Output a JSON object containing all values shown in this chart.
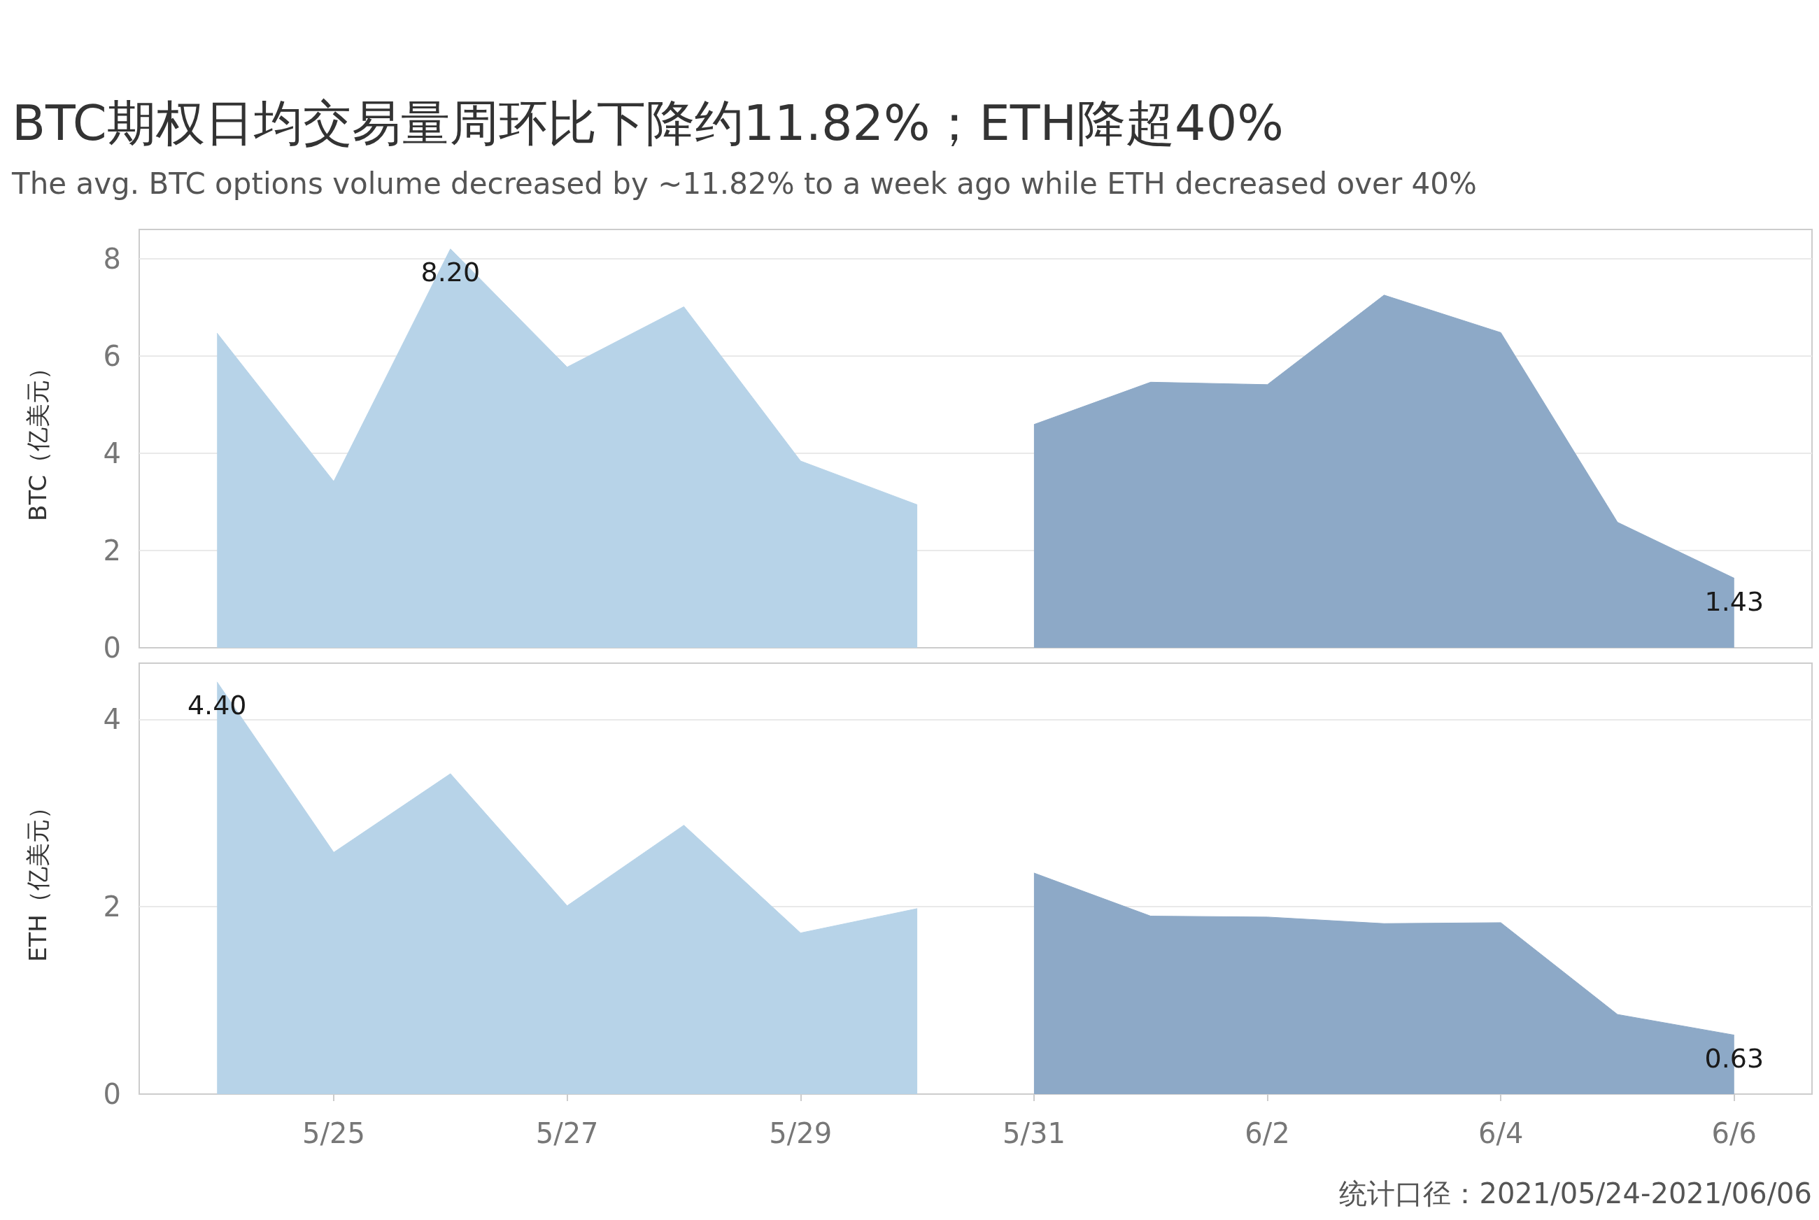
{
  "chart_data": [
    {
      "type": "area",
      "title": "BTC期权日均交易量周环比下降约11.82%；ETH降超40%",
      "subtitle": "The avg. BTC options volume decreased by ~11.82% to a week ago while ETH decreased over 40%",
      "ylabel": "BTC（亿美元）",
      "xlim": [
        "2021-05-23T08:00",
        "2021-06-06T16:00"
      ],
      "ylim": [
        0,
        8.6
      ],
      "yticks": [
        0,
        2,
        4,
        6,
        8
      ],
      "grid": "y",
      "tick_labels": "y",
      "series": [
        {
          "color": "#b7d3e8",
          "x": [
            "2021-05-24",
            "2021-05-25",
            "2021-05-26",
            "2021-05-27",
            "2021-05-28",
            "2021-05-29",
            "2021-05-30"
          ],
          "values": [
            6.47,
            3.42,
            8.2,
            5.77,
            7.01,
            3.84,
            2.94
          ],
          "value_labels": [
            null,
            null,
            "8.20",
            null,
            null,
            null,
            null
          ]
        },
        {
          "color": "#8da9c7",
          "x": [
            "2021-05-31",
            "2021-06-01",
            "2021-06-02",
            "2021-06-03",
            "2021-06-04",
            "2021-06-05",
            "2021-06-06"
          ],
          "values": [
            4.59,
            5.46,
            5.41,
            7.25,
            6.48,
            2.58,
            1.43
          ],
          "value_labels": [
            null,
            null,
            null,
            null,
            null,
            null,
            "1.43"
          ]
        }
      ]
    },
    {
      "type": "area",
      "ylabel": "ETH（亿美元）",
      "xlim": [
        "2021-05-23T08:00",
        "2021-06-06T16:00"
      ],
      "xticks": [
        {
          "value": "2021-05-25",
          "label": "5/25"
        },
        {
          "value": "2021-05-27",
          "label": "5/27"
        },
        {
          "value": "2021-05-29",
          "label": "5/29"
        },
        {
          "value": "2021-05-31",
          "label": "5/31"
        },
        {
          "value": "2021-06-02",
          "label": "6/2"
        },
        {
          "value": "2021-06-04",
          "label": "6/4"
        },
        {
          "value": "2021-06-06",
          "label": "6/6"
        }
      ],
      "ylim": [
        0,
        4.6
      ],
      "yticks": [
        0,
        2,
        4
      ],
      "grid": "y",
      "series": [
        {
          "color": "#b7d3e8",
          "x": [
            "2021-05-24",
            "2021-05-25",
            "2021-05-26",
            "2021-05-27",
            "2021-05-28",
            "2021-05-29",
            "2021-05-30"
          ],
          "values": [
            4.4,
            2.58,
            3.42,
            2.01,
            2.87,
            1.72,
            1.98
          ],
          "value_labels": [
            "4.40",
            null,
            null,
            null,
            null,
            null,
            null
          ]
        },
        {
          "color": "#8da9c7",
          "x": [
            "2021-05-31",
            "2021-06-01",
            "2021-06-02",
            "2021-06-03",
            "2021-06-04",
            "2021-06-05",
            "2021-06-06"
          ],
          "values": [
            2.36,
            1.9,
            1.89,
            1.82,
            1.83,
            0.85,
            0.63
          ],
          "value_labels": [
            null,
            null,
            null,
            null,
            null,
            null,
            "0.63"
          ]
        }
      ],
      "annotations": [
        "统计口径：2021/05/24-2021/06/06"
      ]
    }
  ]
}
